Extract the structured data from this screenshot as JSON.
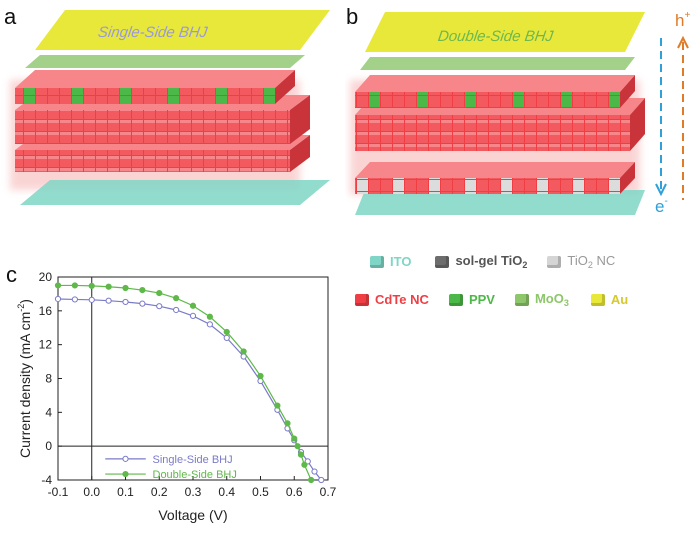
{
  "panels": {
    "a": {
      "letter": "a",
      "title": "Single-Side BHJ"
    },
    "b": {
      "letter": "b",
      "title": "Double-Side BHJ"
    },
    "c": {
      "letter": "c"
    }
  },
  "arrows": {
    "hole": "h",
    "hole_sup": "+",
    "electron": "e",
    "electron_sup": "-"
  },
  "legend": {
    "ito": "ITO",
    "solgel_tio2_main": "sol-gel TiO",
    "solgel_tio2_sub": "2",
    "tio2nc_main": "TiO",
    "tio2nc_sub": "2",
    "tio2nc_suffix": " NC",
    "cdte": "CdTe NC",
    "ppv": "PPV",
    "moo3_main": "MoO",
    "moo3_sub": "3",
    "au": "Au"
  },
  "colors": {
    "ito": "#7fd6c6",
    "solgel": "#6d6d6d",
    "tio2nc": "#bdbdbd",
    "cdte": "#ef3f45",
    "ppv": "#4cb848",
    "moo3": "#8dc66b",
    "au": "#e8e83a",
    "single": "#7a7ac8",
    "double": "#5fb84a",
    "arrow_h": "#e07b2a",
    "arrow_e": "#2fa0d8"
  },
  "chart_data": {
    "type": "line",
    "xlabel": "Voltage (V)",
    "ylabel": "Current density (mA cm",
    "ylabel_sup": "-2",
    "ylabel_close": ")",
    "xlim": [
      -0.1,
      0.7
    ],
    "ylim": [
      -4,
      20
    ],
    "xticks": [
      -0.1,
      0.0,
      0.1,
      0.2,
      0.3,
      0.4,
      0.5,
      0.6,
      0.7
    ],
    "xtick_labels": [
      "-0.1",
      "0.0",
      "0.1",
      "0.2",
      "0.3",
      "0.4",
      "0.5",
      "0.6",
      "0.7"
    ],
    "yticks": [
      -4,
      0,
      4,
      8,
      12,
      16,
      20
    ],
    "ytick_labels": [
      "-4",
      "0",
      "4",
      "8",
      "12",
      "16",
      "20"
    ],
    "series": [
      {
        "name": "Single-Side BHJ",
        "marker": "open-circle",
        "x": [
          -0.1,
          -0.05,
          0.0,
          0.05,
          0.1,
          0.15,
          0.2,
          0.25,
          0.3,
          0.35,
          0.4,
          0.45,
          0.5,
          0.55,
          0.58,
          0.6,
          0.62,
          0.64,
          0.66,
          0.68
        ],
        "y": [
          17.4,
          17.35,
          17.3,
          17.2,
          17.05,
          16.85,
          16.55,
          16.1,
          15.4,
          14.4,
          12.8,
          10.6,
          7.7,
          4.3,
          2.1,
          0.7,
          -0.7,
          -1.8,
          -3.0,
          -4.0
        ]
      },
      {
        "name": "Double-Side BHJ",
        "marker": "filled-circle",
        "x": [
          -0.1,
          -0.05,
          0.0,
          0.05,
          0.1,
          0.15,
          0.2,
          0.25,
          0.3,
          0.35,
          0.4,
          0.45,
          0.5,
          0.55,
          0.58,
          0.6,
          0.61,
          0.62,
          0.63,
          0.65
        ],
        "y": [
          19.0,
          19.0,
          18.95,
          18.85,
          18.7,
          18.45,
          18.1,
          17.5,
          16.6,
          15.3,
          13.5,
          11.2,
          8.3,
          4.8,
          2.7,
          0.9,
          0.0,
          -1.0,
          -2.2,
          -4.0
        ]
      }
    ]
  }
}
